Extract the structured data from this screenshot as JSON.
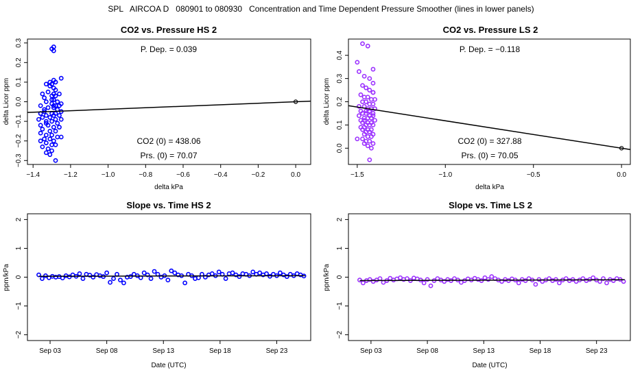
{
  "figure_title": "SPL   AIRCOA D   080901 to 080930   Concentration and Time Dependent Pressure Smoother (lines in lower panels)",
  "chart_data": [
    {
      "type": "scatter",
      "title": "CO2 vs. Pressure HS 2",
      "xlabel": "delta kPa",
      "ylabel": "delta Licor ppm",
      "xlim": [
        -1.43,
        0.08
      ],
      "ylim": [
        -0.32,
        0.32
      ],
      "xticks": [
        -1.4,
        -1.2,
        -1.0,
        -0.8,
        -0.6,
        -0.4,
        -0.2,
        0.0
      ],
      "xtick_labels": [
        "−1.4",
        "−1.2",
        "−1.0",
        "−0.8",
        "−0.6",
        "−0.4",
        "−0.2",
        "0.0"
      ],
      "yticks": [
        -0.3,
        -0.2,
        -0.1,
        0.0,
        0.1,
        0.2,
        0.3
      ],
      "ytick_labels": [
        "−0.3",
        "−0.2",
        "−0.1",
        "0.0",
        "0.1",
        "0.2",
        "0.3"
      ],
      "point_color": "#0000ff",
      "annotations": {
        "pdep": "P. Dep. =  0.039",
        "co2_0": "CO2 (0) =  438.06",
        "prs_0": "Prs. (0) =  70.07"
      },
      "fit_line": {
        "x": [
          -1.43,
          0.08
        ],
        "y": [
          -0.0548,
          0.0031
        ]
      },
      "reference_point": {
        "x": 0.0,
        "y": 0.0
      },
      "points": {
        "x": [
          -1.29,
          -1.3,
          -1.29,
          -1.28,
          -1.3,
          -1.31,
          -1.29,
          -1.28,
          -1.25,
          -1.33,
          -1.29,
          -1.28,
          -1.32,
          -1.35,
          -1.29,
          -1.3,
          -1.28,
          -1.26,
          -1.34,
          -1.29,
          -1.3,
          -1.27,
          -1.25,
          -1.33,
          -1.3,
          -1.28,
          -1.26,
          -1.36,
          -1.32,
          -1.29,
          -1.27,
          -1.25,
          -1.34,
          -1.3,
          -1.28,
          -1.36,
          -1.33,
          -1.29,
          -1.26,
          -1.35,
          -1.31,
          -1.28,
          -1.25,
          -1.37,
          -1.33,
          -1.3,
          -1.27,
          -1.36,
          -1.32,
          -1.29,
          -1.26,
          -1.35,
          -1.31,
          -1.28,
          -1.36,
          -1.33,
          -1.3,
          -1.27,
          -1.25,
          -1.34,
          -1.31,
          -1.29,
          -1.36,
          -1.33,
          -1.3,
          -1.28,
          -1.35,
          -1.32,
          -1.3,
          -1.33,
          -1.31,
          -1.28,
          -1.36,
          -1.34,
          -1.29,
          -1.31,
          -1.33
        ],
        "y": [
          0.28,
          0.27,
          0.26,
          0.1,
          0.09,
          0.1,
          0.11,
          0.1,
          0.12,
          0.09,
          0.07,
          0.06,
          0.05,
          0.04,
          0.04,
          0.03,
          0.03,
          0.04,
          0.02,
          0.01,
          0.01,
          0.0,
          -0.01,
          0.0,
          -0.01,
          -0.02,
          -0.02,
          -0.02,
          -0.03,
          -0.03,
          -0.04,
          -0.05,
          -0.05,
          -0.06,
          -0.06,
          -0.06,
          -0.07,
          -0.07,
          -0.07,
          -0.08,
          -0.08,
          -0.09,
          -0.09,
          -0.09,
          -0.1,
          -0.1,
          -0.11,
          -0.12,
          -0.12,
          -0.13,
          -0.13,
          -0.14,
          -0.15,
          -0.15,
          -0.16,
          -0.17,
          -0.17,
          -0.18,
          -0.18,
          -0.19,
          -0.19,
          -0.2,
          -0.2,
          -0.21,
          -0.22,
          -0.22,
          -0.23,
          -0.24,
          -0.25,
          -0.26,
          -0.27,
          -0.3,
          -0.06,
          -0.04,
          -0.02,
          0.08,
          -0.11
        ]
      }
    },
    {
      "type": "scatter",
      "title": "CO2 vs. Pressure LS 2",
      "xlabel": "delta kPa",
      "ylabel": "delta Licor ppm",
      "xlim": [
        -1.55,
        0.05
      ],
      "ylim": [
        -0.07,
        0.47
      ],
      "xticks": [
        -1.5,
        -1.0,
        -0.5,
        0.0
      ],
      "xtick_labels": [
        "−1.5",
        "−1.0",
        "−0.5",
        "0.0"
      ],
      "yticks": [
        0.0,
        0.1,
        0.2,
        0.3,
        0.4
      ],
      "ytick_labels": [
        "0.0",
        "0.1",
        "0.2",
        "0.3",
        "0.4"
      ],
      "point_color": "#9b30ff",
      "annotations": {
        "pdep": "P. Dep. =  −0.118",
        "co2_0": "CO2 (0) =  327.88",
        "prs_0": "Prs. (0) =  70.05"
      },
      "fit_line": {
        "x": [
          -1.55,
          0.05
        ],
        "y": [
          0.1829,
          -0.0059
        ]
      },
      "reference_point": {
        "x": 0.0,
        "y": 0.0
      },
      "points": {
        "x": [
          -1.47,
          -1.44,
          -1.5,
          -1.41,
          -1.49,
          -1.46,
          -1.43,
          -1.41,
          -1.47,
          -1.45,
          -1.43,
          -1.41,
          -1.48,
          -1.46,
          -1.44,
          -1.42,
          -1.4,
          -1.47,
          -1.45,
          -1.43,
          -1.41,
          -1.49,
          -1.46,
          -1.44,
          -1.42,
          -1.4,
          -1.48,
          -1.45,
          -1.43,
          -1.41,
          -1.47,
          -1.45,
          -1.43,
          -1.41,
          -1.49,
          -1.46,
          -1.44,
          -1.42,
          -1.4,
          -1.48,
          -1.46,
          -1.44,
          -1.42,
          -1.47,
          -1.45,
          -1.43,
          -1.41,
          -1.48,
          -1.46,
          -1.44,
          -1.42,
          -1.47,
          -1.45,
          -1.43,
          -1.41,
          -1.46,
          -1.44,
          -1.42,
          -1.5,
          -1.47,
          -1.45,
          -1.43,
          -1.41,
          -1.46,
          -1.44,
          -1.42,
          -1.43,
          -1.41
        ],
        "y": [
          0.45,
          0.44,
          0.37,
          0.34,
          0.33,
          0.31,
          0.3,
          0.28,
          0.27,
          0.26,
          0.25,
          0.24,
          0.23,
          0.22,
          0.22,
          0.21,
          0.21,
          0.2,
          0.2,
          0.19,
          0.19,
          0.18,
          0.18,
          0.17,
          0.17,
          0.17,
          0.16,
          0.16,
          0.16,
          0.15,
          0.15,
          0.15,
          0.14,
          0.14,
          0.14,
          0.13,
          0.13,
          0.13,
          0.12,
          0.12,
          0.12,
          0.11,
          0.11,
          0.11,
          0.1,
          0.1,
          0.1,
          0.09,
          0.09,
          0.08,
          0.08,
          0.08,
          0.07,
          0.07,
          0.06,
          0.06,
          0.05,
          0.05,
          0.04,
          0.04,
          0.03,
          0.03,
          0.02,
          0.02,
          0.01,
          0.0,
          -0.05,
          0.24
        ]
      }
    },
    {
      "type": "line",
      "title": "Slope vs. Time HS 2",
      "xlabel": "Date (UTC)",
      "ylabel": "ppm/kPa",
      "xlim": [
        0.0,
        25.0
      ],
      "ylim": [
        -2.2,
        2.2
      ],
      "xticks": [
        2.0,
        7.0,
        12.0,
        17.0,
        22.0
      ],
      "xtick_labels": [
        "Sep 03",
        "Sep 08",
        "Sep 13",
        "Sep 18",
        "Sep 23"
      ],
      "yticks": [
        -2,
        -1,
        0,
        1,
        2
      ],
      "ytick_labels": [
        "−2",
        "−1",
        "0",
        "1",
        "2"
      ],
      "point_color": "#0000ff",
      "smoother": {
        "x": [
          1.0,
          24.5
        ],
        "y": [
          0.03,
          0.05
        ]
      },
      "points": {
        "x": [
          1.0,
          1.3,
          1.6,
          1.9,
          2.2,
          2.5,
          2.8,
          3.1,
          3.4,
          3.7,
          4.0,
          4.3,
          4.6,
          4.9,
          5.2,
          5.5,
          5.8,
          6.1,
          6.4,
          6.7,
          7.0,
          7.3,
          7.6,
          7.9,
          8.2,
          8.5,
          8.8,
          9.1,
          9.4,
          9.7,
          10.0,
          10.3,
          10.6,
          10.9,
          11.2,
          11.5,
          11.8,
          12.1,
          12.4,
          12.7,
          13.0,
          13.3,
          13.6,
          13.9,
          14.2,
          14.5,
          14.8,
          15.1,
          15.4,
          15.7,
          16.0,
          16.3,
          16.6,
          16.9,
          17.2,
          17.5,
          17.8,
          18.1,
          18.4,
          18.7,
          19.0,
          19.3,
          19.6,
          19.9,
          20.2,
          20.5,
          20.8,
          21.1,
          21.4,
          21.7,
          22.0,
          22.3,
          22.6,
          22.9,
          23.2,
          23.5,
          23.8,
          24.1,
          24.4
        ],
        "y": [
          0.08,
          -0.05,
          0.05,
          -0.02,
          0.03,
          0.0,
          0.02,
          -0.03,
          0.05,
          0.01,
          0.08,
          0.03,
          0.12,
          -0.05,
          0.1,
          0.07,
          0.0,
          0.09,
          0.05,
          0.02,
          0.15,
          -0.18,
          -0.05,
          0.1,
          -0.1,
          -0.2,
          0.0,
          0.02,
          0.1,
          0.05,
          -0.02,
          0.15,
          0.08,
          -0.05,
          0.2,
          0.1,
          0.0,
          0.05,
          -0.1,
          0.22,
          0.15,
          0.08,
          0.05,
          -0.2,
          0.1,
          0.05,
          -0.05,
          -0.02,
          0.1,
          0.0,
          0.08,
          0.12,
          0.05,
          0.18,
          0.1,
          -0.05,
          0.12,
          0.15,
          0.08,
          0.02,
          0.12,
          0.1,
          0.05,
          0.18,
          0.1,
          0.15,
          0.08,
          0.12,
          0.03,
          0.1,
          0.05,
          0.15,
          0.08,
          0.02,
          0.1,
          0.05,
          0.12,
          0.08,
          0.04
        ]
      }
    },
    {
      "type": "line",
      "title": "Slope vs. Time LS 2",
      "xlabel": "Date (UTC)",
      "ylabel": "ppm/kPa",
      "xlim": [
        0.0,
        25.0
      ],
      "ylim": [
        -2.2,
        2.2
      ],
      "xticks": [
        2.0,
        7.0,
        12.0,
        17.0,
        22.0
      ],
      "xtick_labels": [
        "Sep 03",
        "Sep 08",
        "Sep 13",
        "Sep 18",
        "Sep 23"
      ],
      "yticks": [
        -2,
        -1,
        0,
        1,
        2
      ],
      "ytick_labels": [
        "−2",
        "−1",
        "0",
        "1",
        "2"
      ],
      "point_color": "#9b30ff",
      "smoother": {
        "x": [
          1.0,
          24.5
        ],
        "y": [
          -0.12,
          -0.09
        ]
      },
      "points": {
        "x": [
          1.0,
          1.3,
          1.6,
          1.9,
          2.2,
          2.5,
          2.8,
          3.1,
          3.4,
          3.7,
          4.0,
          4.3,
          4.6,
          4.9,
          5.2,
          5.5,
          5.8,
          6.1,
          6.4,
          6.7,
          7.0,
          7.3,
          7.6,
          7.9,
          8.2,
          8.5,
          8.8,
          9.1,
          9.4,
          9.7,
          10.0,
          10.3,
          10.6,
          10.9,
          11.2,
          11.5,
          11.8,
          12.1,
          12.4,
          12.7,
          13.0,
          13.3,
          13.6,
          13.9,
          14.2,
          14.5,
          14.8,
          15.1,
          15.4,
          15.7,
          16.0,
          16.3,
          16.6,
          16.9,
          17.2,
          17.5,
          17.8,
          18.1,
          18.4,
          18.7,
          19.0,
          19.3,
          19.6,
          19.9,
          20.2,
          20.5,
          20.8,
          21.1,
          21.4,
          21.7,
          22.0,
          22.3,
          22.6,
          22.9,
          23.2,
          23.5,
          23.8,
          24.1,
          24.4
        ],
        "y": [
          -0.1,
          -0.2,
          -0.12,
          -0.08,
          -0.15,
          -0.1,
          -0.05,
          -0.18,
          -0.12,
          -0.04,
          -0.1,
          -0.06,
          -0.02,
          -0.08,
          -0.05,
          -0.12,
          -0.03,
          -0.06,
          -0.1,
          -0.2,
          -0.08,
          -0.3,
          -0.12,
          -0.05,
          -0.1,
          -0.15,
          -0.08,
          -0.12,
          -0.05,
          -0.1,
          -0.18,
          -0.12,
          -0.06,
          -0.1,
          -0.04,
          -0.08,
          -0.12,
          -0.02,
          -0.08,
          0.02,
          -0.05,
          -0.1,
          -0.15,
          -0.08,
          -0.12,
          -0.06,
          -0.1,
          -0.2,
          -0.08,
          -0.12,
          -0.05,
          -0.1,
          -0.25,
          -0.08,
          -0.15,
          -0.1,
          -0.05,
          -0.12,
          -0.08,
          -0.2,
          -0.1,
          -0.05,
          -0.12,
          -0.08,
          -0.15,
          -0.1,
          -0.05,
          -0.12,
          -0.08,
          -0.02,
          -0.1,
          -0.15,
          -0.05,
          -0.2,
          -0.08,
          -0.12,
          -0.05,
          -0.08,
          -0.15
        ]
      }
    }
  ]
}
